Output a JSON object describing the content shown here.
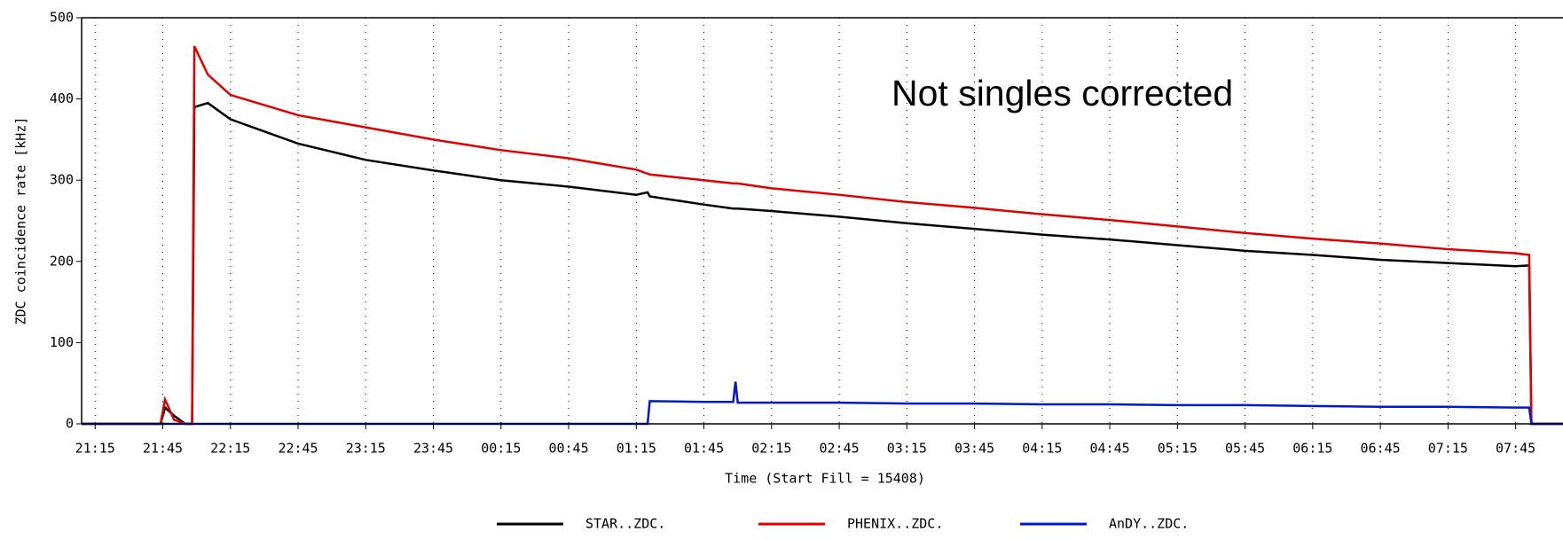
{
  "chart_data": {
    "type": "line",
    "xlabel": "Time (Start Fill = 15408)",
    "ylabel": "ZDC coincidence rate [kHz]",
    "annotation": "Not singles corrected",
    "x": [
      "21:09",
      "21:44",
      "21:46",
      "21:50",
      "21:55",
      "21:58",
      "21:59",
      "22:05",
      "22:15",
      "22:45",
      "23:15",
      "23:45",
      "00:15",
      "00:45",
      "01:15",
      "01:20",
      "01:21",
      "01:45",
      "01:58",
      "01:59",
      "02:00",
      "02:15",
      "02:45",
      "03:15",
      "03:45",
      "04:15",
      "04:45",
      "05:15",
      "05:45",
      "06:15",
      "06:45",
      "07:15",
      "07:45",
      "07:51",
      "07:52",
      "08:06"
    ],
    "series": [
      {
        "name": "STAR..ZDC.",
        "color": "#000000",
        "values": [
          0,
          0,
          20,
          10,
          0,
          0,
          390,
          395,
          375,
          345,
          325,
          312,
          300,
          292,
          282,
          285,
          280,
          270,
          265,
          265,
          265,
          262,
          255,
          247,
          240,
          233,
          227,
          220,
          213,
          208,
          202,
          198,
          194,
          195,
          0,
          0
        ]
      },
      {
        "name": "PHENIX..ZDC.",
        "color": "#e00000",
        "values": [
          0,
          0,
          30,
          5,
          0,
          0,
          465,
          430,
          405,
          380,
          365,
          350,
          337,
          327,
          313,
          308,
          307,
          300,
          296,
          296,
          296,
          290,
          282,
          273,
          266,
          258,
          251,
          243,
          235,
          228,
          222,
          215,
          210,
          208,
          0,
          0
        ]
      },
      {
        "name": "AnDY..ZDC.",
        "color": "#0018d0",
        "values": [
          0,
          0,
          0,
          0,
          0,
          0,
          0,
          0,
          0,
          0,
          0,
          0,
          0,
          0,
          0,
          0,
          28,
          27,
          27,
          52,
          26,
          26,
          26,
          25,
          25,
          24,
          24,
          23,
          23,
          22,
          21,
          21,
          20,
          20,
          0,
          0
        ]
      }
    ],
    "xlim": [
      "21:09",
      "08:06"
    ],
    "xticks": [
      "21:15",
      "21:45",
      "22:15",
      "22:45",
      "23:15",
      "23:45",
      "00:15",
      "00:45",
      "01:15",
      "01:45",
      "02:15",
      "02:45",
      "03:15",
      "03:45",
      "04:15",
      "04:45",
      "05:15",
      "05:45",
      "06:15",
      "06:45",
      "07:15",
      "07:45"
    ],
    "ylim": [
      0,
      500
    ],
    "yticks": [
      0,
      100,
      200,
      300,
      400,
      500
    ],
    "grid": true,
    "legend": "bottom"
  }
}
